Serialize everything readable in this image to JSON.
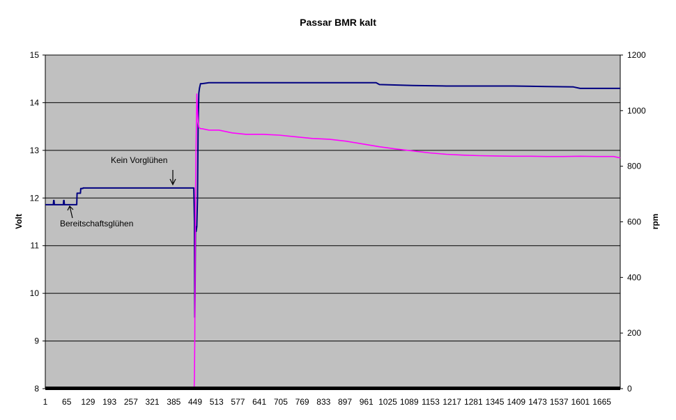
{
  "chart_data": {
    "type": "line",
    "title": "Passar BMR kalt",
    "xlabel": "",
    "ylabel": "Volt",
    "y2label": "rpm",
    "xlim": [
      1,
      1720
    ],
    "ylim": [
      8,
      15
    ],
    "y2lim": [
      0,
      1200
    ],
    "x_ticks": [
      "1",
      "65",
      "129",
      "193",
      "257",
      "321",
      "385",
      "449",
      "513",
      "577",
      "641",
      "705",
      "769",
      "833",
      "897",
      "961",
      "1025",
      "1089",
      "1153",
      "1217",
      "1281",
      "1345",
      "1409",
      "1473",
      "1537",
      "1601",
      "1665"
    ],
    "y_ticks": [
      "8",
      "9",
      "10",
      "11",
      "12",
      "13",
      "14",
      "15"
    ],
    "y2_ticks": [
      "0",
      "200",
      "400",
      "600",
      "800",
      "1000",
      "1200"
    ],
    "grid": "horizontal",
    "plot_background": "#c0c0c0",
    "series": [
      {
        "axis": "left",
        "color": "#000080",
        "x": [
          1,
          25,
          26,
          27,
          28,
          55,
          56,
          57,
          58,
          95,
          96,
          106,
          107,
          113,
          114,
          445,
          447,
          448,
          449,
          450,
          452,
          454,
          456,
          458,
          460,
          462,
          465,
          470,
          490,
          520,
          600,
          700,
          800,
          900,
          990,
          1000,
          1100,
          1200,
          1300,
          1400,
          1500,
          1580,
          1600,
          1700,
          1720
        ],
        "y": [
          11.86,
          11.86,
          11.95,
          11.95,
          11.86,
          11.86,
          11.95,
          11.95,
          11.86,
          11.86,
          12.1,
          12.1,
          12.2,
          12.2,
          12.21,
          12.21,
          11.5,
          9.5,
          10.2,
          11.4,
          11.3,
          11.4,
          12.0,
          13.5,
          14.2,
          14.3,
          14.4,
          14.4,
          14.42,
          14.42,
          14.42,
          14.42,
          14.42,
          14.42,
          14.42,
          14.38,
          14.36,
          14.35,
          14.35,
          14.35,
          14.34,
          14.33,
          14.3,
          14.3,
          14.3
        ]
      },
      {
        "axis": "right",
        "color": "#ff00ff",
        "x": [
          1,
          446,
          447,
          448,
          449,
          450,
          452,
          454,
          456,
          458,
          460,
          465,
          470,
          490,
          520,
          560,
          600,
          650,
          700,
          750,
          800,
          850,
          900,
          950,
          1000,
          1050,
          1100,
          1150,
          1200,
          1250,
          1300,
          1350,
          1400,
          1450,
          1500,
          1550,
          1600,
          1650,
          1700,
          1720
        ],
        "y": [
          0,
          0,
          40,
          180,
          500,
          700,
          880,
          1060,
          1000,
          960,
          940,
          935,
          935,
          930,
          930,
          920,
          915,
          915,
          912,
          906,
          900,
          897,
          890,
          880,
          870,
          862,
          855,
          848,
          843,
          840,
          838,
          837,
          836,
          836,
          835,
          835,
          836,
          835,
          835,
          830
        ]
      }
    ],
    "annotations": [
      {
        "text": "Kein  Vorglühen",
        "x": 410,
        "y": 12.21
      },
      {
        "text": "Bereitschaftsglühen",
        "x": 80,
        "y": 11.86
      }
    ]
  }
}
